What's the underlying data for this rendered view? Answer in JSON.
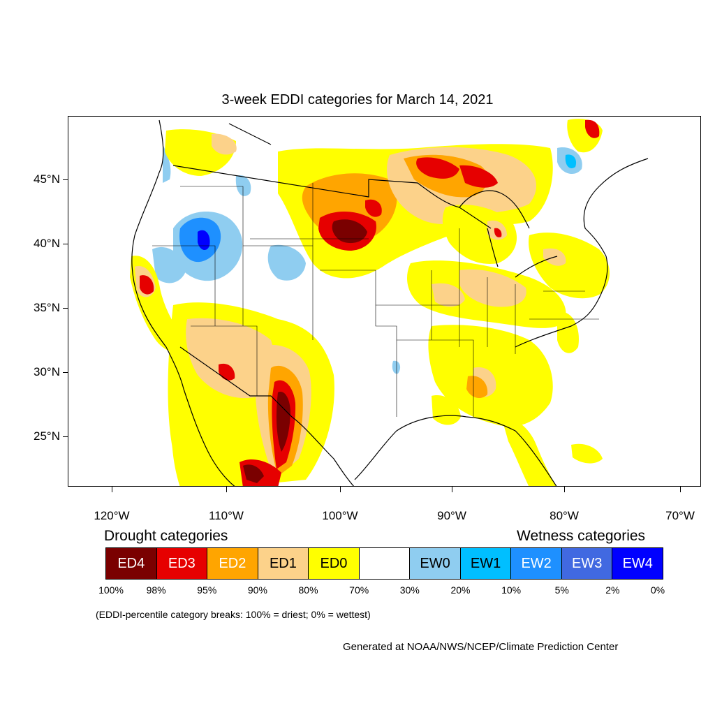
{
  "title": "3-week EDDI categories for March 14, 2021",
  "axes": {
    "lat_ticks": [
      "45°N",
      "40°N",
      "35°N",
      "30°N",
      "25°N"
    ],
    "lon_ticks": [
      "120°W",
      "110°W",
      "100°W",
      "90°W",
      "80°W",
      "70°W"
    ]
  },
  "legend": {
    "drought_heading": "Drought categories",
    "wetness_heading": "Wetness categories",
    "categories": [
      {
        "label": "ED4",
        "color": "#7a0000",
        "text_color": "#ffffff"
      },
      {
        "label": "ED3",
        "color": "#e60000",
        "text_color": "#ffffff"
      },
      {
        "label": "ED2",
        "color": "#ffa500",
        "text_color": "#ffffff"
      },
      {
        "label": "ED1",
        "color": "#fcd28a",
        "text_color": "#000000"
      },
      {
        "label": "ED0",
        "color": "#ffff00",
        "text_color": "#000000"
      },
      {
        "label": "",
        "color": "#ffffff",
        "text_color": "#000000"
      },
      {
        "label": "EW0",
        "color": "#8fcdf0",
        "text_color": "#000000"
      },
      {
        "label": "EW1",
        "color": "#00bfff",
        "text_color": "#000000"
      },
      {
        "label": "EW2",
        "color": "#1e90ff",
        "text_color": "#ffffff"
      },
      {
        "label": "EW3",
        "color": "#4169e1",
        "text_color": "#ffffff"
      },
      {
        "label": "EW4",
        "color": "#0000ff",
        "text_color": "#ffffff"
      }
    ],
    "percentiles": [
      "100%",
      "98%",
      "95%",
      "90%",
      "80%",
      "70%",
      "30%",
      "20%",
      "10%",
      "5%",
      "2%",
      "0%"
    ]
  },
  "note": "(EDDI-percentile category breaks: 100% = driest; 0% = wettest)",
  "credit": "Generated at NOAA/NWS/NCEP/Climate Prediction Center"
}
